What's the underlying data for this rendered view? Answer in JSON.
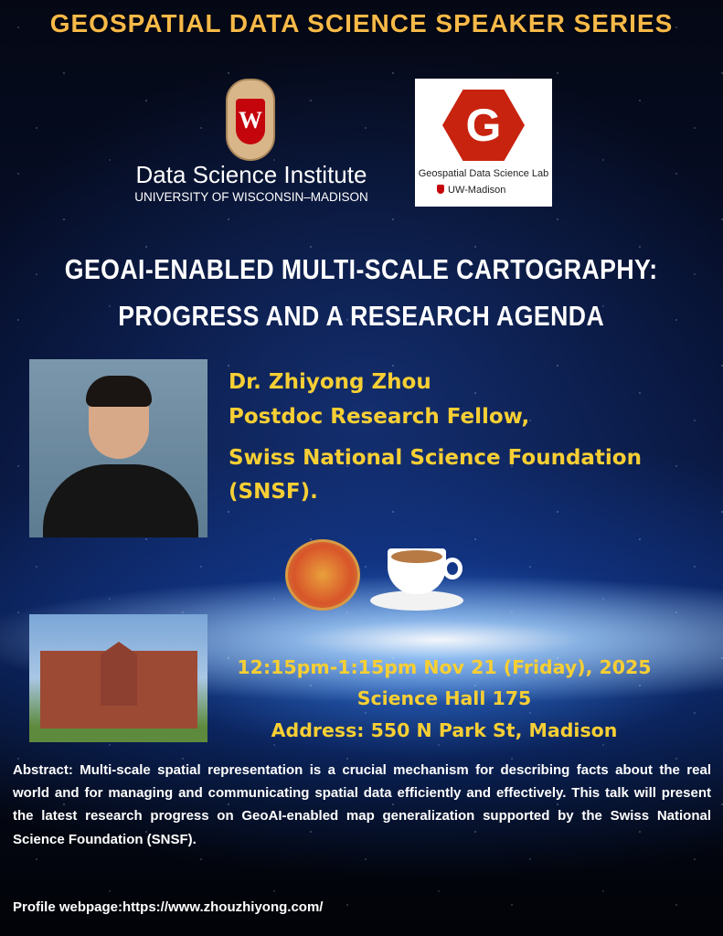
{
  "header": {
    "series_title": "GEOSPATIAL DATA SCIENCE SPEAKER SERIES",
    "color": "#f7b948"
  },
  "logos": {
    "dsi": {
      "crest_letter": "W",
      "name": "Data Science Institute",
      "university": "UNIVERSITY OF WISCONSIN–MADISON"
    },
    "gds_lab": {
      "letter": "G",
      "name": "Geospatial Data Science Lab",
      "affiliation": "UW-Madison",
      "color": "#c8230f"
    }
  },
  "talk": {
    "title_line1": "GEOAI-ENABLED MULTI-SCALE CARTOGRAPHY:",
    "title_line2": "PROGRESS AND A RESEARCH AGENDA"
  },
  "speaker": {
    "name": "Dr. Zhiyong Zhou",
    "position": "Postdoc Research Fellow,",
    "org_line1": "Swiss National Science Foundation",
    "org_line2": "(SNSF).",
    "color": "#f7cf34"
  },
  "event": {
    "time": "12:15pm-1:15pm Nov 21 (Friday), 2025",
    "room": "Science Hall 175",
    "address": "Address: 550 N Park St, Madison"
  },
  "abstract": "Abstract: Multi-scale spatial representation is a crucial mechanism for describing facts about the real world and for managing and communicating spatial data efficiently and effectively. This talk will present the latest research progress on GeoAI-enabled map generalization supported by the Swiss National Science Foundation (SNSF).",
  "profile": "Profile webpage:https://www.zhouzhiyong.com/"
}
